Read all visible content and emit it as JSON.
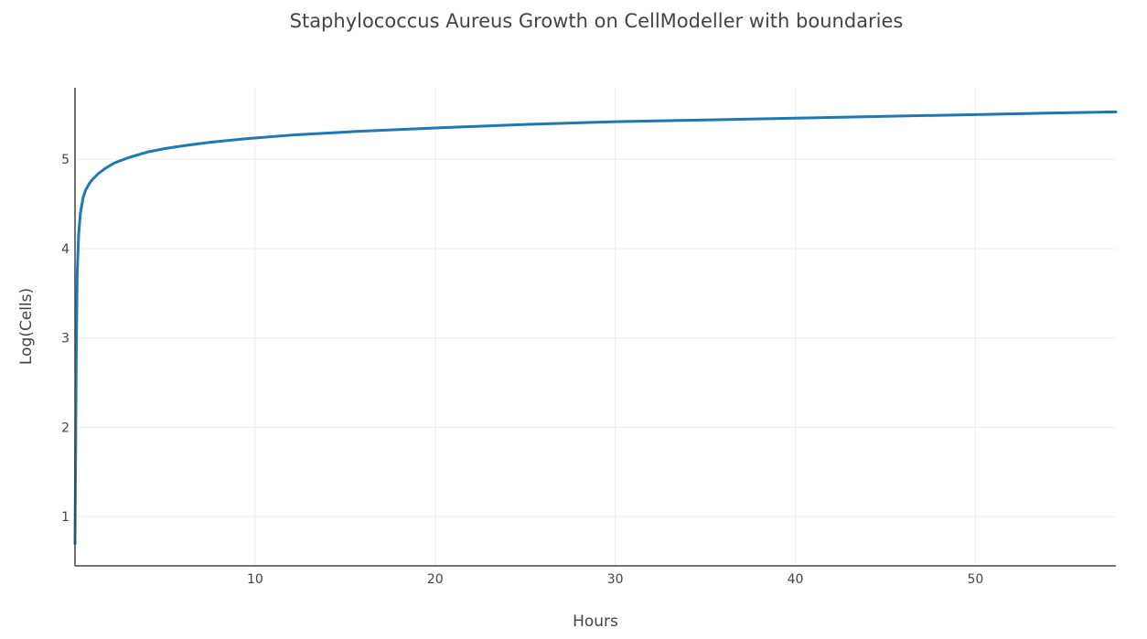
{
  "chart_data": {
    "type": "line",
    "title": "Staphylococcus Aureus Growth on CellModeller with boundaries",
    "xlabel": "Hours",
    "ylabel": "Log(Cells)",
    "xlim": [
      0,
      57.8
    ],
    "ylim": [
      0.45,
      5.8
    ],
    "xticks": [
      10,
      20,
      30,
      40,
      50
    ],
    "yticks": [
      1,
      2,
      3,
      4,
      5
    ],
    "grid": true,
    "legend": "none",
    "series": [
      {
        "color": "#1f77b4",
        "x": [
          0,
          0.03,
          0.07,
          0.12,
          0.2,
          0.3,
          0.45,
          0.6,
          0.8,
          1.0,
          1.3,
          1.7,
          2.2,
          3.0,
          4.0,
          5.0,
          6.0,
          7.5,
          9.5,
          12,
          15.5,
          20,
          25,
          30,
          35,
          40,
          45,
          50,
          55,
          57.8
        ],
        "y": [
          0.7,
          1.6,
          2.8,
          3.7,
          4.15,
          4.4,
          4.57,
          4.66,
          4.73,
          4.78,
          4.84,
          4.9,
          4.96,
          5.02,
          5.08,
          5.12,
          5.15,
          5.19,
          5.23,
          5.27,
          5.31,
          5.35,
          5.39,
          5.42,
          5.44,
          5.46,
          5.48,
          5.5,
          5.52,
          5.53
        ]
      }
    ]
  }
}
